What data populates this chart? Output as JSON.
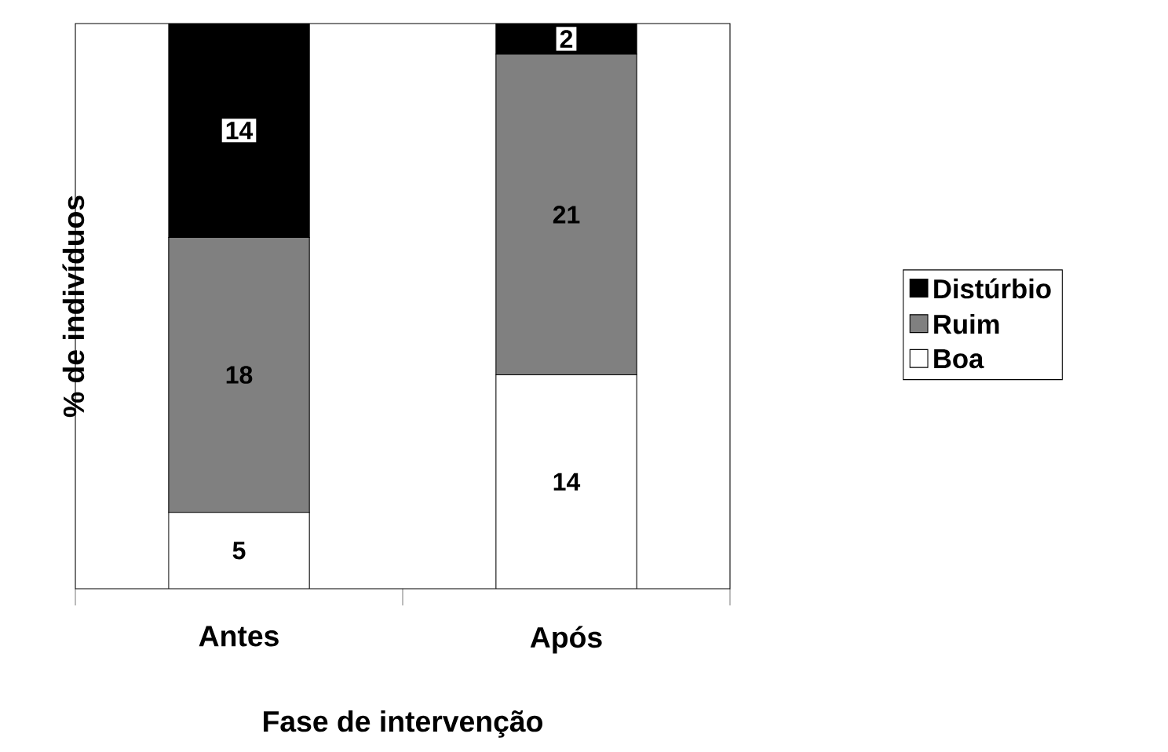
{
  "chart_data": {
    "type": "bar",
    "stacked": true,
    "tick_labels": "x",
    "xlabel": "Fase de intervenção",
    "ylabel": "% de indivíduos",
    "categories": [
      "Antes",
      "Após"
    ],
    "series": [
      {
        "name": "Boa",
        "color": "#ffffff",
        "values": [
          5,
          14
        ]
      },
      {
        "name": "Ruim",
        "color": "#808080",
        "values": [
          18,
          21
        ]
      },
      {
        "name": "Distúrbio",
        "color": "#000000",
        "values": [
          14,
          2
        ]
      }
    ],
    "data_labels": true,
    "legend": "right"
  }
}
